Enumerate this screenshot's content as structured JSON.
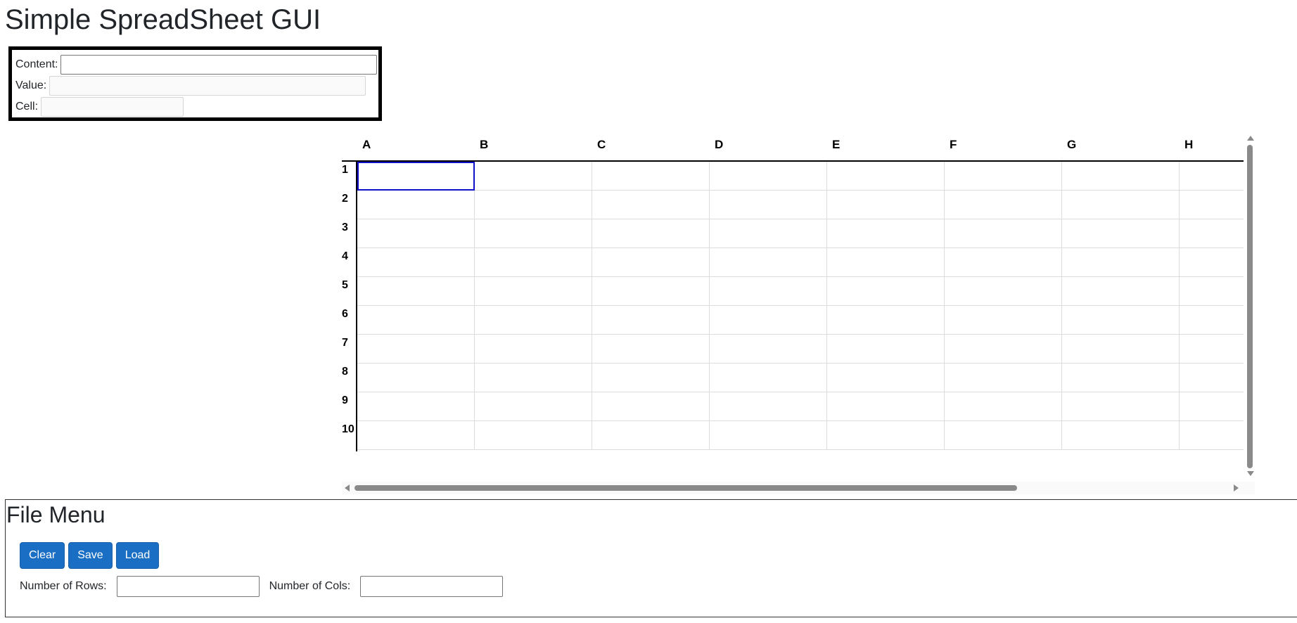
{
  "page": {
    "title": "Simple SpreadSheet GUI"
  },
  "cell_panel": {
    "content_label": "Content:",
    "content_value": "",
    "value_label": "Value:",
    "value_value": "",
    "cell_label": "Cell:",
    "cell_value": ""
  },
  "spreadsheet": {
    "columns": [
      "A",
      "B",
      "C",
      "D",
      "E",
      "F",
      "G",
      "H"
    ],
    "rows": [
      "1",
      "2",
      "3",
      "4",
      "5",
      "6",
      "7",
      "8",
      "9",
      "10"
    ],
    "selected_cell": "A1"
  },
  "file_menu": {
    "title": "File Menu",
    "clear_label": "Clear",
    "save_label": "Save",
    "load_label": "Load",
    "rows_label": "Number of Rows:",
    "rows_value": "",
    "cols_label": "Number of Cols:",
    "cols_value": ""
  },
  "colors": {
    "button": "#1a6ec4",
    "selection_border": "#1010c8",
    "grid_line": "#dcdcdc"
  }
}
